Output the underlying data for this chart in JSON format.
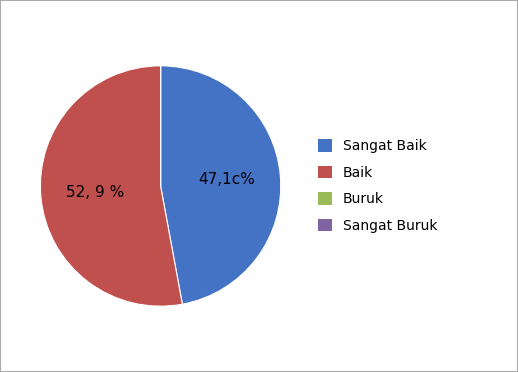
{
  "slices": [
    47.1,
    52.9,
    0.0,
    0.0
  ],
  "labels": [
    "Sangat Baik",
    "Baik",
    "Buruk",
    "Sangat Buruk"
  ],
  "colors": [
    "#4472C4",
    "#C0504D",
    "#9BBB59",
    "#8064A2"
  ],
  "autopct_labels": [
    "47,1c%",
    "52, 9 %",
    "",
    ""
  ],
  "legend_labels": [
    "Sangat Baik",
    "Baik",
    "Buruk",
    "Sangat Buruk"
  ],
  "startangle": 90,
  "background_color": "#ffffff",
  "text_color": "#000000",
  "fontsize": 11,
  "border_color": "#AAAAAA"
}
